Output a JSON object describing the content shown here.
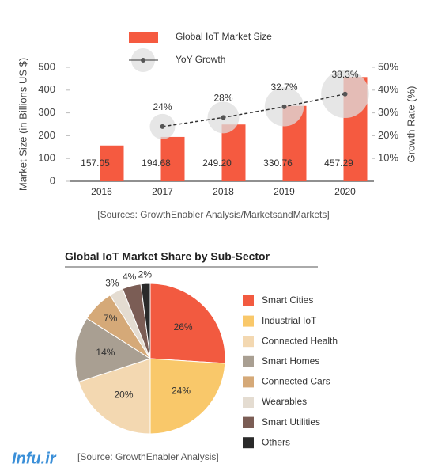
{
  "chart_data": [
    {
      "type": "bar",
      "categories": [
        "2016",
        "2017",
        "2018",
        "2019",
        "2020"
      ],
      "y_label": "Market Size (in Billions US $)",
      "y2_label": "Growth Rate (%)",
      "ylim": [
        0,
        500
      ],
      "yticks": [
        0,
        100,
        200,
        300,
        400,
        500
      ],
      "y2lim": [
        0,
        50
      ],
      "y2ticks": [
        {
          "value": 10,
          "label": "10%"
        },
        {
          "value": 20,
          "label": "20%"
        },
        {
          "value": 30,
          "label": "30%"
        },
        {
          "value": 40,
          "label": "40%"
        },
        {
          "value": 50,
          "label": "50%"
        }
      ],
      "series": [
        {
          "name": "Global IoT Market Size",
          "color": "#f55a40",
          "values": [
            157.05,
            194.68,
            249.2,
            330.76,
            457.29
          ],
          "value_labels": [
            "157.05",
            "194.68",
            "249.20",
            "330.76",
            "457.29"
          ]
        },
        {
          "name": "YoY Growth",
          "type": "line",
          "axis": "y2",
          "color": "#333333",
          "values": [
            null,
            24,
            28,
            32.7,
            38.3
          ],
          "value_labels": [
            null,
            "24%",
            "28%",
            "32.7%",
            "38.3%"
          ]
        }
      ],
      "source": "[Sources: GrowthEnabler Analysis/MarketsandMarkets]"
    },
    {
      "type": "pie",
      "title": "Global IoT Market Share by Sub-Sector",
      "categories": [
        "Smart Cities",
        "Industrial IoT",
        "Connected Health",
        "Smart Homes",
        "Connected Cars",
        "Wearables",
        "Smart Utilities",
        "Others"
      ],
      "values": [
        26,
        24,
        20,
        14,
        7,
        3,
        4,
        2
      ],
      "value_labels": [
        "26%",
        "24%",
        "20%",
        "14%",
        "7%",
        "3%",
        "4%",
        "2%"
      ],
      "colors": [
        "#f25a40",
        "#f9c86a",
        "#f3d8b1",
        "#a99f92",
        "#d5a978",
        "#e4dcd1",
        "#7b5d55",
        "#2a2a2a"
      ],
      "source": "[Source: GrowthEnabler Analysis]"
    }
  ],
  "watermark": "Infu.ir"
}
